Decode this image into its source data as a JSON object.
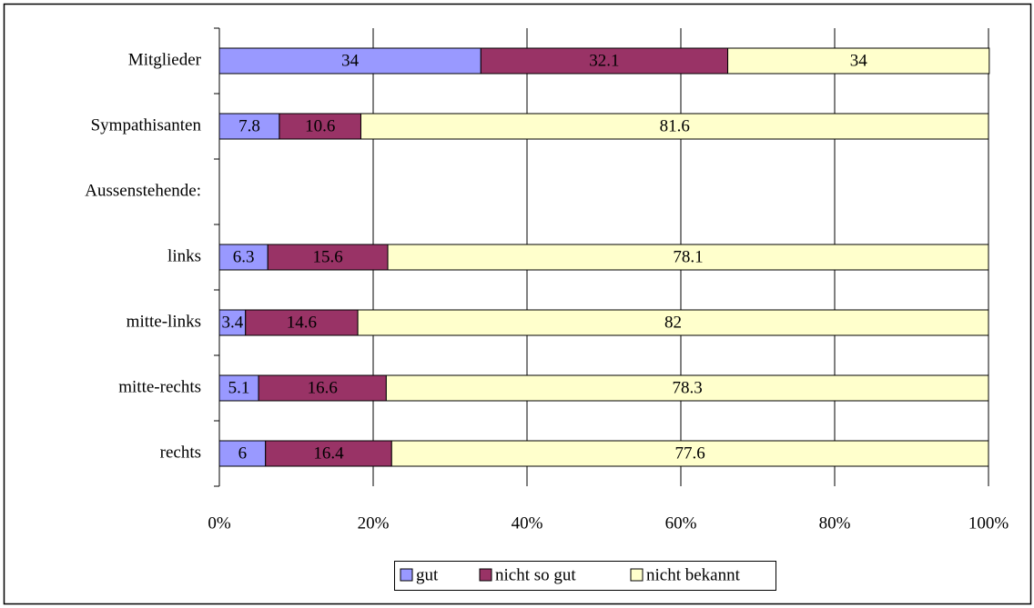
{
  "chart_data": {
    "type": "bar",
    "orientation": "horizontal",
    "stacked": true,
    "categories": [
      "Mitglieder",
      "Sympathisanten",
      "Aussenstehende:",
      "links",
      "mitte-links",
      "mitte-rechts",
      "rechts"
    ],
    "series": [
      {
        "name": "gut",
        "color": "#9999ff",
        "values": [
          34,
          7.8,
          null,
          6.3,
          3.4,
          5.1,
          6
        ]
      },
      {
        "name": "nicht so gut",
        "color": "#993366",
        "values": [
          32.1,
          10.6,
          null,
          15.6,
          14.6,
          16.6,
          16.4
        ]
      },
      {
        "name": "nicht bekannt",
        "color": "#ffffcc",
        "values": [
          34,
          81.6,
          null,
          78.1,
          82,
          78.3,
          77.6
        ]
      }
    ],
    "xlim": [
      0,
      100
    ],
    "xticks": [
      {
        "value": 0,
        "label": "0%"
      },
      {
        "value": 20,
        "label": "20%"
      },
      {
        "value": 40,
        "label": "40%"
      },
      {
        "value": 60,
        "label": "60%"
      },
      {
        "value": 80,
        "label": "80%"
      },
      {
        "value": 100,
        "label": "100%"
      }
    ],
    "grid": true,
    "legend": "bottom"
  }
}
